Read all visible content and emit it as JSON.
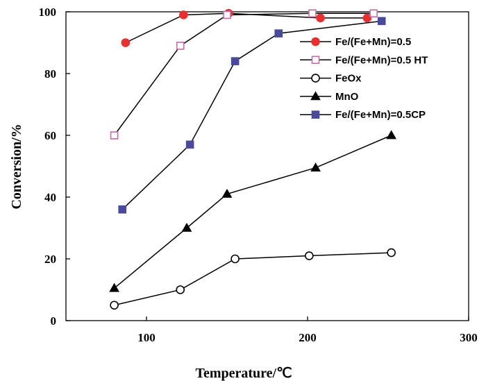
{
  "chart_data": {
    "type": "line",
    "xlabel": "Temperature/℃",
    "ylabel": "Conversion/%",
    "xlim": [
      50,
      300
    ],
    "ylim": [
      0,
      100
    ],
    "xticks": [
      100,
      200,
      300
    ],
    "yticks": [
      0,
      20,
      40,
      60,
      80,
      100
    ],
    "grid": false,
    "legend_position": "top-right",
    "series": [
      {
        "name": "Fe/(Fe+Mn)=0.5",
        "marker": "circle",
        "fill": "#e8302e",
        "stroke": "#e8302e",
        "x": [
          87,
          123,
          151,
          208,
          237
        ],
        "y": [
          90,
          99,
          99.5,
          98,
          98
        ]
      },
      {
        "name": "Fe/(Fe+Mn)=0.5 HT",
        "marker": "square",
        "fill": "#ffffff",
        "stroke": "#c86aa8",
        "x": [
          80,
          121,
          150,
          203,
          241
        ],
        "y": [
          60,
          89,
          99,
          99.5,
          99.5
        ]
      },
      {
        "name": "FeOx",
        "marker": "circle",
        "fill": "#ffffff",
        "stroke": "#000000",
        "x": [
          80,
          121,
          155,
          201,
          252
        ],
        "y": [
          5,
          10,
          20,
          21,
          22
        ]
      },
      {
        "name": "MnO",
        "marker": "triangle",
        "fill": "#000000",
        "stroke": "#000000",
        "x": [
          80,
          125,
          150,
          205,
          252
        ],
        "y": [
          10.5,
          30,
          41,
          49.5,
          60
        ]
      },
      {
        "name": "Fe/(Fe+Mn)=0.5CP",
        "marker": "square",
        "fill": "#4a4a9a",
        "stroke": "#4a4a9a",
        "x": [
          85,
          127,
          155,
          182,
          246
        ],
        "y": [
          36,
          57,
          84,
          93,
          97
        ]
      }
    ]
  }
}
